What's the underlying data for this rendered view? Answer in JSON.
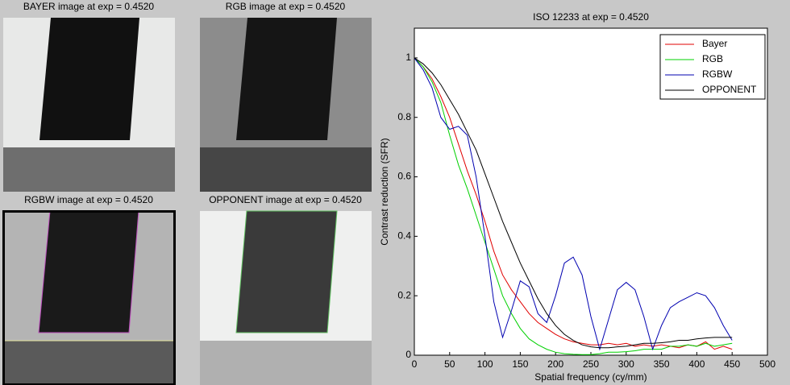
{
  "panels": [
    {
      "title": "BAYER image at exp = 0.4520"
    },
    {
      "title": "RGB image at exp = 0.4520"
    },
    {
      "title": "RGBW image at exp = 0.4520"
    },
    {
      "title": "OPPONENT image at exp = 0.4520"
    }
  ],
  "chart_data": {
    "type": "line",
    "title": "ISO 12233 at exp = 0.4520",
    "x_label": "Spatial frequency (cy/mm)",
    "y_label": "Contrast reduction (SFR)",
    "x": [
      0,
      12.5,
      25,
      37.5,
      50,
      62.5,
      75,
      87.5,
      100,
      112.5,
      125,
      137.5,
      150,
      162.5,
      175,
      187.5,
      200,
      212.5,
      225,
      237.5,
      250,
      262.5,
      275,
      287.5,
      300,
      312.5,
      325,
      337.5,
      350,
      362.5,
      375,
      387.5,
      400,
      412.5,
      425,
      437.5,
      450
    ],
    "series": [
      {
        "name": "Bayer",
        "color": "#e00000",
        "values": [
          1.0,
          0.97,
          0.93,
          0.87,
          0.8,
          0.71,
          0.62,
          0.54,
          0.45,
          0.35,
          0.27,
          0.22,
          0.18,
          0.14,
          0.11,
          0.09,
          0.07,
          0.055,
          0.045,
          0.04,
          0.035,
          0.035,
          0.04,
          0.035,
          0.04,
          0.03,
          0.035,
          0.03,
          0.035,
          0.03,
          0.025,
          0.035,
          0.03,
          0.045,
          0.02,
          0.03,
          0.02
        ]
      },
      {
        "name": "RGB",
        "color": "#00d000",
        "values": [
          1.0,
          0.97,
          0.92,
          0.85,
          0.74,
          0.64,
          0.56,
          0.47,
          0.38,
          0.29,
          0.2,
          0.14,
          0.09,
          0.055,
          0.035,
          0.02,
          0.01,
          0.005,
          0.003,
          0.002,
          0.002,
          0.005,
          0.01,
          0.01,
          0.012,
          0.015,
          0.02,
          0.02,
          0.02,
          0.03,
          0.03,
          0.035,
          0.03,
          0.04,
          0.03,
          0.035,
          0.04
        ]
      },
      {
        "name": "RGBW",
        "color": "#0000b0",
        "values": [
          1.0,
          0.96,
          0.9,
          0.8,
          0.76,
          0.77,
          0.74,
          0.6,
          0.4,
          0.18,
          0.06,
          0.15,
          0.25,
          0.23,
          0.14,
          0.11,
          0.2,
          0.31,
          0.33,
          0.27,
          0.13,
          0.02,
          0.12,
          0.22,
          0.245,
          0.22,
          0.13,
          0.02,
          0.1,
          0.16,
          0.18,
          0.195,
          0.21,
          0.2,
          0.16,
          0.1,
          0.05
        ]
      },
      {
        "name": "OPPONENT",
        "color": "#000000",
        "values": [
          1.0,
          0.98,
          0.95,
          0.91,
          0.86,
          0.81,
          0.75,
          0.69,
          0.61,
          0.53,
          0.45,
          0.38,
          0.31,
          0.25,
          0.19,
          0.14,
          0.1,
          0.07,
          0.05,
          0.035,
          0.028,
          0.025,
          0.025,
          0.028,
          0.03,
          0.035,
          0.04,
          0.04,
          0.042,
          0.045,
          0.05,
          0.05,
          0.055,
          0.058,
          0.06,
          0.06,
          0.06
        ]
      }
    ],
    "xlim": [
      0,
      500
    ],
    "ylim": [
      0,
      1.1
    ],
    "xticks": [
      0,
      50,
      100,
      150,
      200,
      250,
      300,
      350,
      400,
      450,
      500
    ],
    "yticks": [
      0,
      0.2,
      0.4,
      0.6,
      0.8,
      1
    ],
    "legend": "upper right"
  }
}
